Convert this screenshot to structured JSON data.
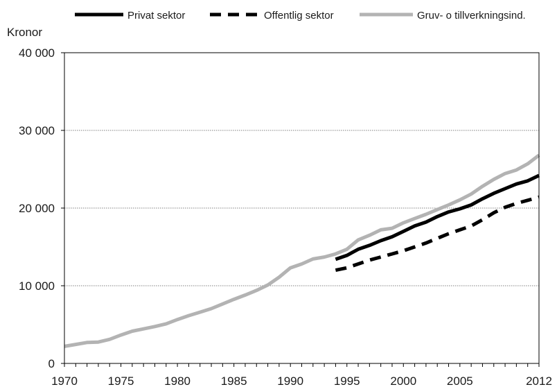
{
  "chart_data": {
    "type": "line",
    "ylabel": "Kronor",
    "xlim": [
      1970,
      2012
    ],
    "ylim": [
      0,
      40000
    ],
    "grid": true,
    "legend_position": "top",
    "x_ticks": [
      {
        "value": 1970,
        "label": "1970"
      },
      {
        "value": 1975,
        "label": "1975"
      },
      {
        "value": 1980,
        "label": "1980"
      },
      {
        "value": 1985,
        "label": "1985"
      },
      {
        "value": 1990,
        "label": "1990"
      },
      {
        "value": 1995,
        "label": "1995"
      },
      {
        "value": 2000,
        "label": "2000"
      },
      {
        "value": 2005,
        "label": "2005"
      },
      {
        "value": 2012,
        "label": "2012"
      }
    ],
    "y_ticks": [
      {
        "value": 0,
        "label": "0"
      },
      {
        "value": 10000,
        "label": "10 000"
      },
      {
        "value": 20000,
        "label": "20 000"
      },
      {
        "value": 30000,
        "label": "30 000"
      },
      {
        "value": 40000,
        "label": "40 000"
      }
    ],
    "series": [
      {
        "name": "Privat sektor",
        "style": "solid",
        "color": "#000000",
        "x": [
          1994,
          1995,
          1996,
          1997,
          1998,
          1999,
          2000,
          2001,
          2002,
          2003,
          2004,
          2005,
          2006,
          2007,
          2008,
          2009,
          2010,
          2011,
          2012
        ],
        "y": [
          13400,
          13900,
          14700,
          15200,
          15800,
          16300,
          17000,
          17700,
          18200,
          18900,
          19500,
          19900,
          20400,
          21200,
          21900,
          22500,
          23100,
          23500,
          24200
        ]
      },
      {
        "name": "Offentlig sektor",
        "style": "dashed",
        "color": "#000000",
        "x": [
          1994,
          1995,
          1996,
          1997,
          1998,
          1999,
          2000,
          2001,
          2002,
          2003,
          2004,
          2005,
          2006,
          2007,
          2008,
          2009,
          2010,
          2011,
          2012
        ],
        "y": [
          12000,
          12300,
          12800,
          13300,
          13700,
          14100,
          14500,
          15000,
          15500,
          16100,
          16700,
          17200,
          17700,
          18500,
          19400,
          20100,
          20600,
          21000,
          21400
        ]
      },
      {
        "name": "Gruv- o tillverkningsind.",
        "style": "solid",
        "color": "#b3b3b3",
        "x": [
          1970,
          1971,
          1972,
          1973,
          1974,
          1975,
          1976,
          1977,
          1978,
          1979,
          1980,
          1981,
          1982,
          1983,
          1984,
          1985,
          1986,
          1987,
          1988,
          1989,
          1990,
          1991,
          1992,
          1993,
          1994,
          1995,
          1996,
          1997,
          1998,
          1999,
          2000,
          2001,
          2002,
          2003,
          2004,
          2005,
          2006,
          2007,
          2008,
          2009,
          2010,
          2011,
          2012
        ],
        "y": [
          2200,
          2450,
          2700,
          2750,
          3100,
          3650,
          4150,
          4450,
          4750,
          5100,
          5650,
          6150,
          6600,
          7050,
          7650,
          8250,
          8800,
          9400,
          10100,
          11100,
          12300,
          12800,
          13450,
          13700,
          14100,
          14700,
          15900,
          16500,
          17200,
          17400,
          18100,
          18650,
          19200,
          19800,
          20400,
          21050,
          21800,
          22800,
          23700,
          24450,
          24900,
          25700,
          26800
        ]
      }
    ]
  }
}
